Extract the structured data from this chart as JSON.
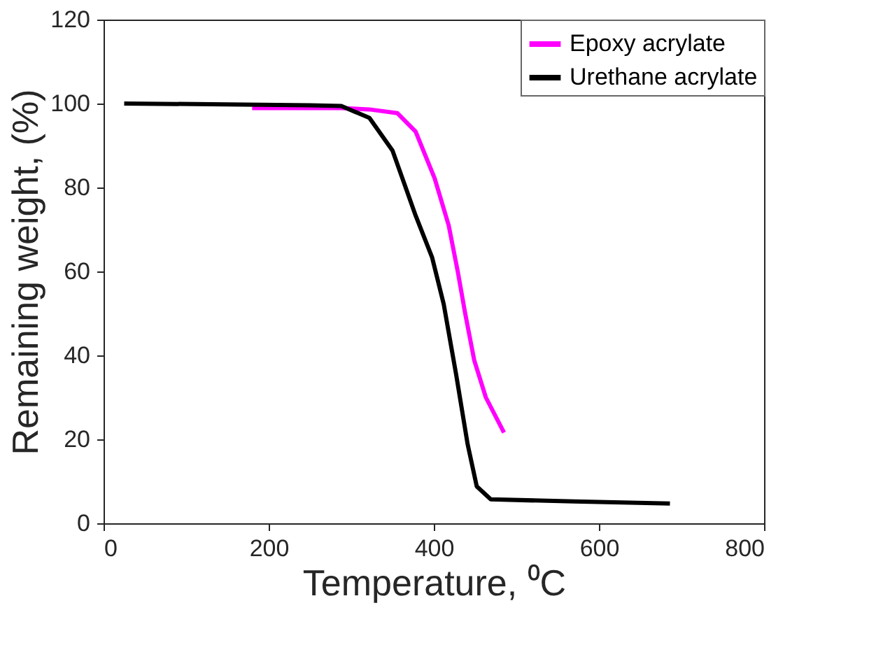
{
  "chart_data": {
    "type": "line",
    "xlabel": "Temperature, ⁰C",
    "ylabel": "Remaining weight, (%)",
    "xlim": [
      0,
      800
    ],
    "xticks": [
      0,
      200,
      400,
      600,
      800
    ],
    "ylim": [
      0,
      120
    ],
    "yticks": [
      0,
      20,
      40,
      60,
      80,
      100,
      120
    ],
    "grid": false,
    "legend": "top right",
    "marker": "none",
    "line_style": "solid",
    "series": [
      {
        "name": "Epoxy acrylate",
        "color": "#ff00ff",
        "x": [
          180,
          250,
          288,
          322,
          356,
          378,
          401,
          418,
          429,
          438,
          449,
          463,
          485
        ],
        "values": [
          98.9,
          98.9,
          98.9,
          98.6,
          97.7,
          93.3,
          82.2,
          71,
          60,
          50,
          38.8,
          30,
          21.6
        ]
      },
      {
        "name": "Urethane acrylate",
        "color": "#000000",
        "x": [
          25,
          150,
          250,
          288,
          322,
          350,
          378,
          398,
          412,
          427,
          441,
          452,
          469,
          570,
          686
        ],
        "values": [
          100,
          99.8,
          99.6,
          99.4,
          96.6,
          88.8,
          73.3,
          63.3,
          52.2,
          35.5,
          18.8,
          8.8,
          5.7,
          5.2,
          4.7
        ]
      }
    ]
  }
}
